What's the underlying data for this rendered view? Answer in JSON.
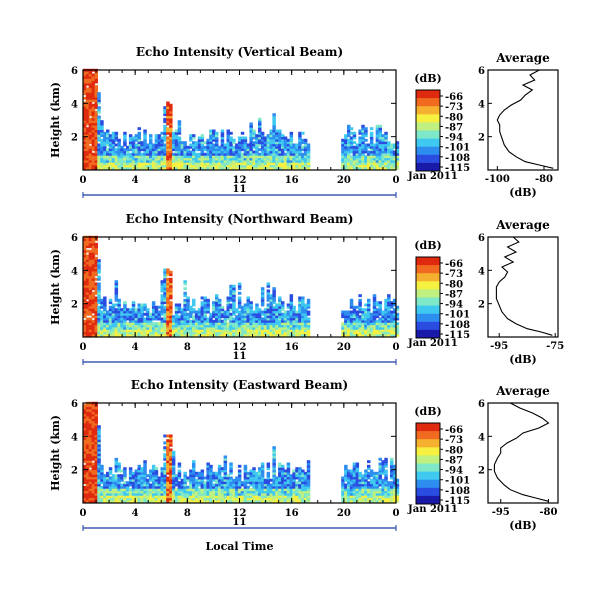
{
  "chart_data": {
    "type": "heatmap",
    "colormap": [
      "#1a1aa8",
      "#2a4ce0",
      "#2e8ef0",
      "#3fc8f0",
      "#7ee8c8",
      "#bff080",
      "#f6f040",
      "#f6b030",
      "#f06a20",
      "#e02a10"
    ],
    "panels": [
      {
        "title": "Echo Intensity (Vertical Beam)",
        "ylabel": "Height (km)",
        "yticks": [
          "2",
          "4",
          "6"
        ],
        "ylim": [
          0,
          6
        ],
        "xticks": [
          "0",
          "4",
          "8",
          "12",
          "16",
          "20",
          "0"
        ],
        "xlim": [
          0,
          24
        ],
        "xlabel_bottom": "11",
        "date_label": "Jan 2011",
        "colorbar": {
          "unit": "(dB)",
          "ticks": [
            "-66",
            "-73",
            "-80",
            "-87",
            "-94",
            "-101",
            "-108",
            "-115"
          ]
        },
        "profile": {
          "title": "Average",
          "xlabel": "(dB)",
          "xticks": [
            "-100",
            "-80"
          ],
          "xlim": [
            -104,
            -74
          ],
          "yticks": [
            "2",
            "4",
            "6"
          ],
          "heights": [
            0.1,
            0.3,
            0.5,
            0.8,
            1.1,
            1.5,
            1.9,
            2.3,
            2.7,
            3.0,
            3.3,
            3.6,
            3.9,
            4.2,
            4.5,
            4.8,
            5.1,
            5.4,
            5.7,
            6.0
          ],
          "values": [
            -76,
            -82,
            -88,
            -92,
            -95,
            -97,
            -98,
            -99,
            -99,
            -100,
            -99,
            -97,
            -94,
            -90,
            -88,
            -85,
            -89,
            -84,
            -86,
            -82
          ]
        }
      },
      {
        "title": "Echo Intensity (Northward Beam)",
        "ylabel": "Height (km)",
        "yticks": [
          "2",
          "4",
          "6"
        ],
        "ylim": [
          0,
          6
        ],
        "xticks": [
          "0",
          "4",
          "8",
          "12",
          "16",
          "20",
          "0"
        ],
        "xlim": [
          0,
          24
        ],
        "xlabel_bottom": "11",
        "date_label": "Jan 2011",
        "colorbar": {
          "unit": "(dB)",
          "ticks": [
            "-66",
            "-73",
            "-80",
            "-87",
            "-94",
            "-101",
            "-108",
            "-115"
          ]
        },
        "profile": {
          "title": "Average",
          "xlabel": "(dB)",
          "xticks": [
            "-95",
            "-75"
          ],
          "xlim": [
            -99,
            -74
          ],
          "yticks": [
            "2",
            "4",
            "6"
          ],
          "heights": [
            0.1,
            0.3,
            0.5,
            0.8,
            1.1,
            1.5,
            1.9,
            2.3,
            2.7,
            3.0,
            3.3,
            3.6,
            3.9,
            4.2,
            4.5,
            4.8,
            5.1,
            5.4,
            5.7,
            6.0
          ],
          "values": [
            -76,
            -80,
            -85,
            -89,
            -92,
            -94,
            -95,
            -96,
            -96,
            -96,
            -95,
            -93,
            -92,
            -94,
            -90,
            -93,
            -89,
            -92,
            -88,
            -90
          ]
        }
      },
      {
        "title": "Echo Intensity (Eastward Beam)",
        "ylabel": "Height (km)",
        "yticks": [
          "2",
          "4",
          "6"
        ],
        "ylim": [
          0,
          6
        ],
        "xticks": [
          "0",
          "4",
          "8",
          "12",
          "16",
          "20",
          "0"
        ],
        "xlim": [
          0,
          24
        ],
        "xlabel_bottom": "11",
        "date_label": "Jan 2011",
        "bottom_label": "Local Time",
        "colorbar": {
          "unit": "(dB)",
          "ticks": [
            "-66",
            "-73",
            "-80",
            "-87",
            "-94",
            "-101",
            "-108",
            "-115"
          ]
        },
        "profile": {
          "title": "Average",
          "xlabel": "(dB)",
          "xticks": [
            "-95",
            "-80"
          ],
          "xlim": [
            -99,
            -77
          ],
          "yticks": [
            "2",
            "4",
            "6"
          ],
          "heights": [
            0.1,
            0.3,
            0.5,
            0.8,
            1.1,
            1.5,
            1.9,
            2.3,
            2.7,
            3.0,
            3.3,
            3.6,
            3.9,
            4.2,
            4.5,
            4.8,
            5.1,
            5.4,
            5.7,
            6.0
          ],
          "values": [
            -80,
            -84,
            -88,
            -92,
            -94,
            -96,
            -97,
            -97,
            -96,
            -95,
            -95,
            -93,
            -90,
            -88,
            -83,
            -80,
            -82,
            -85,
            -89,
            -92
          ]
        }
      }
    ]
  }
}
